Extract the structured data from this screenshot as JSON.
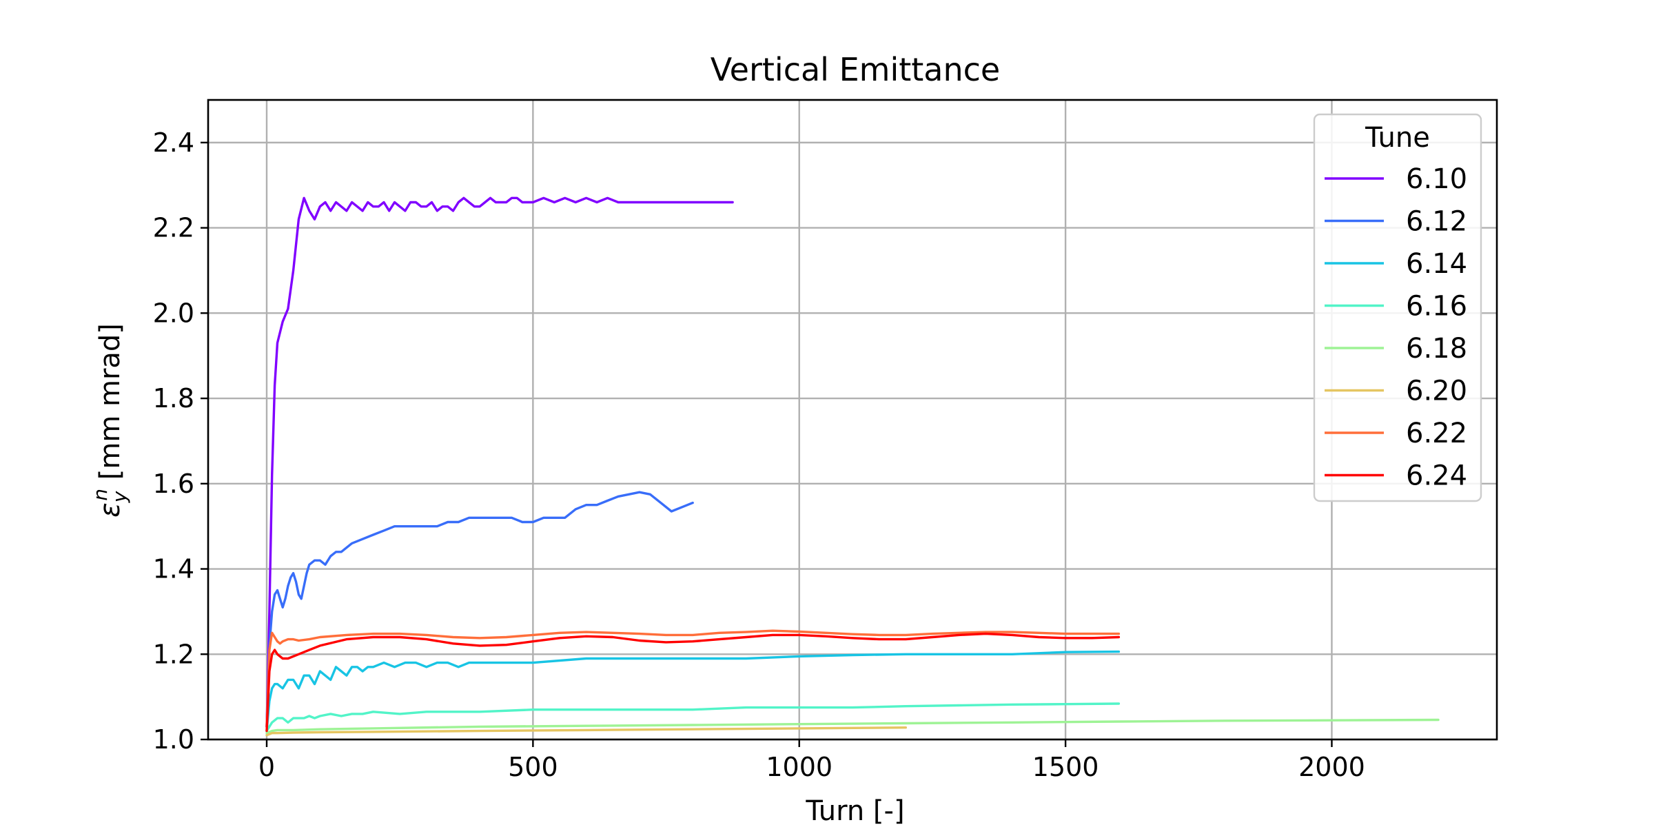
{
  "chart_data": {
    "type": "line",
    "title": "Vertical Emittance",
    "xlabel": "Turn [-]",
    "ylabel": "ε_y^n [mm mrad]",
    "xlim": [
      -110,
      2310
    ],
    "ylim": [
      1.0,
      2.5
    ],
    "xticks": [
      0,
      500,
      1000,
      1500,
      2000
    ],
    "yticks": [
      1.0,
      1.2,
      1.4,
      1.6,
      1.8,
      2.0,
      2.2,
      2.4
    ],
    "grid": true,
    "legend": {
      "title": "Tune",
      "placement": "top-right"
    },
    "series": [
      {
        "name": "6.10",
        "color": "#8000ff",
        "x": [
          0,
          5,
          10,
          15,
          20,
          30,
          40,
          50,
          60,
          70,
          80,
          90,
          100,
          110,
          120,
          130,
          140,
          150,
          160,
          170,
          180,
          190,
          200,
          210,
          220,
          230,
          240,
          250,
          260,
          270,
          280,
          290,
          300,
          310,
          320,
          330,
          340,
          350,
          360,
          370,
          380,
          390,
          400,
          410,
          420,
          430,
          440,
          450,
          460,
          470,
          480,
          490,
          500,
          520,
          540,
          560,
          580,
          600,
          620,
          640,
          660,
          680,
          700,
          720,
          740,
          760,
          780,
          800,
          820,
          840,
          860,
          875
        ],
        "y": [
          1.03,
          1.3,
          1.62,
          1.83,
          1.93,
          1.98,
          2.01,
          2.1,
          2.22,
          2.27,
          2.24,
          2.22,
          2.25,
          2.26,
          2.24,
          2.26,
          2.25,
          2.24,
          2.26,
          2.25,
          2.24,
          2.26,
          2.25,
          2.25,
          2.26,
          2.24,
          2.26,
          2.25,
          2.24,
          2.26,
          2.26,
          2.25,
          2.25,
          2.26,
          2.24,
          2.25,
          2.25,
          2.24,
          2.26,
          2.27,
          2.26,
          2.25,
          2.25,
          2.26,
          2.27,
          2.26,
          2.26,
          2.26,
          2.27,
          2.27,
          2.26,
          2.26,
          2.26,
          2.27,
          2.26,
          2.27,
          2.26,
          2.27,
          2.26,
          2.27,
          2.26,
          2.26,
          2.26,
          2.26,
          2.26,
          2.26,
          2.26,
          2.26,
          2.26,
          2.26,
          2.26,
          2.26
        ]
      },
      {
        "name": "6.12",
        "color": "#386df9",
        "x": [
          0,
          5,
          10,
          15,
          20,
          25,
          30,
          35,
          40,
          45,
          50,
          55,
          60,
          65,
          70,
          75,
          80,
          90,
          100,
          110,
          120,
          130,
          140,
          160,
          180,
          200,
          220,
          240,
          260,
          280,
          300,
          320,
          340,
          360,
          380,
          400,
          420,
          440,
          460,
          480,
          500,
          520,
          540,
          560,
          580,
          600,
          620,
          640,
          660,
          680,
          700,
          720,
          740,
          760,
          780,
          800
        ],
        "y": [
          1.03,
          1.22,
          1.3,
          1.34,
          1.35,
          1.33,
          1.31,
          1.33,
          1.36,
          1.38,
          1.39,
          1.37,
          1.34,
          1.33,
          1.36,
          1.39,
          1.41,
          1.42,
          1.42,
          1.41,
          1.43,
          1.44,
          1.44,
          1.46,
          1.47,
          1.48,
          1.49,
          1.5,
          1.5,
          1.5,
          1.5,
          1.5,
          1.51,
          1.51,
          1.52,
          1.52,
          1.52,
          1.52,
          1.52,
          1.51,
          1.51,
          1.52,
          1.52,
          1.52,
          1.54,
          1.55,
          1.55,
          1.56,
          1.57,
          1.575,
          1.58,
          1.575,
          1.555,
          1.535,
          1.545,
          1.555
        ]
      },
      {
        "name": "6.14",
        "color": "#18c4e4",
        "x": [
          0,
          5,
          10,
          15,
          20,
          30,
          40,
          50,
          60,
          70,
          80,
          90,
          100,
          110,
          120,
          130,
          140,
          150,
          160,
          170,
          180,
          190,
          200,
          220,
          240,
          260,
          280,
          300,
          320,
          340,
          360,
          380,
          400,
          420,
          440,
          460,
          480,
          500,
          600,
          700,
          800,
          900,
          1000,
          1100,
          1200,
          1300,
          1400,
          1500,
          1600
        ],
        "y": [
          1.02,
          1.09,
          1.12,
          1.13,
          1.13,
          1.12,
          1.14,
          1.14,
          1.12,
          1.15,
          1.15,
          1.13,
          1.16,
          1.15,
          1.14,
          1.17,
          1.16,
          1.15,
          1.17,
          1.17,
          1.16,
          1.17,
          1.17,
          1.18,
          1.17,
          1.18,
          1.18,
          1.17,
          1.18,
          1.18,
          1.17,
          1.18,
          1.18,
          1.18,
          1.18,
          1.18,
          1.18,
          1.18,
          1.19,
          1.19,
          1.19,
          1.19,
          1.195,
          1.198,
          1.2,
          1.2,
          1.2,
          1.205,
          1.206
        ]
      },
      {
        "name": "6.16",
        "color": "#52f4c8",
        "x": [
          0,
          10,
          20,
          30,
          40,
          50,
          60,
          70,
          80,
          90,
          100,
          120,
          140,
          160,
          180,
          200,
          250,
          300,
          400,
          500,
          600,
          700,
          800,
          900,
          1000,
          1100,
          1200,
          1300,
          1400,
          1500,
          1600
        ],
        "y": [
          1.02,
          1.04,
          1.05,
          1.05,
          1.04,
          1.05,
          1.05,
          1.05,
          1.055,
          1.05,
          1.055,
          1.06,
          1.055,
          1.06,
          1.06,
          1.065,
          1.06,
          1.065,
          1.065,
          1.07,
          1.07,
          1.07,
          1.07,
          1.075,
          1.075,
          1.075,
          1.078,
          1.08,
          1.082,
          1.083,
          1.084
        ]
      },
      {
        "name": "6.18",
        "color": "#9ef395",
        "x": [
          0,
          10,
          20,
          50,
          100,
          200,
          400,
          600,
          800,
          1000,
          1200,
          1400,
          1600,
          1800,
          2000,
          2200
        ],
        "y": [
          1.015,
          1.02,
          1.022,
          1.022,
          1.024,
          1.026,
          1.03,
          1.032,
          1.034,
          1.036,
          1.038,
          1.04,
          1.042,
          1.044,
          1.045,
          1.046
        ]
      },
      {
        "name": "6.20",
        "color": "#e5c561",
        "x": [
          0,
          10,
          20,
          50,
          100,
          200,
          400,
          600,
          800,
          1000,
          1200
        ],
        "y": [
          1.01,
          1.015,
          1.015,
          1.016,
          1.017,
          1.018,
          1.02,
          1.022,
          1.024,
          1.026,
          1.028
        ]
      },
      {
        "name": "6.22",
        "color": "#ff6e3a",
        "x": [
          0,
          5,
          10,
          15,
          20,
          25,
          30,
          40,
          50,
          60,
          80,
          100,
          150,
          200,
          250,
          300,
          350,
          400,
          450,
          500,
          550,
          600,
          650,
          700,
          750,
          800,
          850,
          900,
          950,
          1000,
          1050,
          1100,
          1150,
          1200,
          1250,
          1300,
          1350,
          1400,
          1450,
          1500,
          1550,
          1600
        ],
        "y": [
          1.03,
          1.21,
          1.25,
          1.24,
          1.23,
          1.225,
          1.23,
          1.235,
          1.235,
          1.232,
          1.235,
          1.24,
          1.245,
          1.248,
          1.248,
          1.245,
          1.24,
          1.238,
          1.24,
          1.245,
          1.25,
          1.252,
          1.25,
          1.248,
          1.245,
          1.245,
          1.25,
          1.252,
          1.255,
          1.253,
          1.25,
          1.247,
          1.245,
          1.245,
          1.248,
          1.25,
          1.252,
          1.252,
          1.25,
          1.248,
          1.248,
          1.248
        ]
      },
      {
        "name": "6.24",
        "color": "#ff0000",
        "x": [
          0,
          5,
          10,
          15,
          20,
          25,
          30,
          40,
          50,
          60,
          80,
          100,
          150,
          200,
          250,
          300,
          350,
          400,
          450,
          500,
          550,
          600,
          650,
          700,
          750,
          800,
          850,
          900,
          950,
          1000,
          1050,
          1100,
          1150,
          1200,
          1250,
          1300,
          1350,
          1400,
          1450,
          1500,
          1550,
          1600
        ],
        "y": [
          1.02,
          1.16,
          1.2,
          1.21,
          1.2,
          1.195,
          1.19,
          1.19,
          1.195,
          1.2,
          1.21,
          1.22,
          1.235,
          1.24,
          1.24,
          1.235,
          1.225,
          1.22,
          1.222,
          1.23,
          1.238,
          1.242,
          1.24,
          1.232,
          1.228,
          1.23,
          1.235,
          1.24,
          1.245,
          1.245,
          1.242,
          1.238,
          1.235,
          1.235,
          1.24,
          1.245,
          1.248,
          1.245,
          1.24,
          1.238,
          1.238,
          1.24
        ]
      }
    ]
  }
}
